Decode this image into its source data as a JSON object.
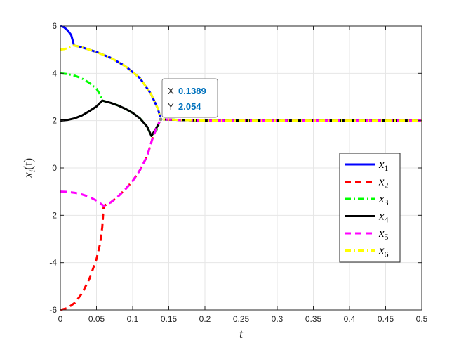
{
  "chart_data": {
    "type": "line",
    "xlabel": "t",
    "ylabel_main": "x",
    "ylabel_sub": "i",
    "ylabel_suffix": "(t)",
    "xlim": [
      0,
      0.5
    ],
    "ylim": [
      -6,
      6
    ],
    "x_ticks": [
      0,
      0.05,
      0.1,
      0.15,
      0.2,
      0.25,
      0.3,
      0.35,
      0.4,
      0.45,
      0.5
    ],
    "x_tick_labels": [
      "0",
      "0.05",
      "0.1",
      "0.15",
      "0.2",
      "0.25",
      "0.3",
      "0.35",
      "0.4",
      "0.45",
      "0.5"
    ],
    "y_ticks": [
      -6,
      -4,
      -2,
      0,
      2,
      4,
      6
    ],
    "y_tick_labels": [
      "-6",
      "-4",
      "-2",
      "0",
      "2",
      "4",
      "6"
    ],
    "grid": true,
    "legend_position": "right",
    "series": [
      {
        "name": "x",
        "sub": "1",
        "color": "#0000ff",
        "dash": "solid",
        "points": [
          [
            0,
            6
          ],
          [
            0.005,
            5.95
          ],
          [
            0.01,
            5.82
          ],
          [
            0.015,
            5.62
          ],
          [
            0.019,
            5.18
          ],
          [
            0.03,
            5.1
          ],
          [
            0.05,
            4.9
          ],
          [
            0.07,
            4.65
          ],
          [
            0.09,
            4.3
          ],
          [
            0.11,
            3.8
          ],
          [
            0.125,
            3.15
          ],
          [
            0.135,
            2.5
          ],
          [
            0.1389,
            2.054
          ],
          [
            0.2,
            2
          ],
          [
            0.3,
            2
          ],
          [
            0.4,
            2
          ],
          [
            0.5,
            2
          ]
        ]
      },
      {
        "name": "x",
        "sub": "2",
        "color": "#ff0000",
        "dash": "dash",
        "points": [
          [
            0,
            -6
          ],
          [
            0.01,
            -5.92
          ],
          [
            0.02,
            -5.7
          ],
          [
            0.03,
            -5.3
          ],
          [
            0.04,
            -4.7
          ],
          [
            0.05,
            -3.85
          ],
          [
            0.055,
            -3.2
          ],
          [
            0.058,
            -2.5
          ],
          [
            0.06,
            -1.6
          ],
          [
            0.07,
            -1.45
          ],
          [
            0.08,
            -1.2
          ],
          [
            0.09,
            -0.9
          ],
          [
            0.1,
            -0.55
          ],
          [
            0.11,
            -0.1
          ],
          [
            0.12,
            0.5
          ],
          [
            0.127,
            1.2
          ],
          [
            0.133,
            1.7
          ],
          [
            0.1389,
            2.054
          ],
          [
            0.2,
            2
          ],
          [
            0.3,
            2
          ],
          [
            0.4,
            2
          ],
          [
            0.5,
            2
          ]
        ]
      },
      {
        "name": "x",
        "sub": "3",
        "color": "#00ff00",
        "dash": "dashdot",
        "points": [
          [
            0,
            4
          ],
          [
            0.01,
            3.97
          ],
          [
            0.02,
            3.9
          ],
          [
            0.03,
            3.78
          ],
          [
            0.04,
            3.6
          ],
          [
            0.05,
            3.35
          ],
          [
            0.056,
            3.05
          ],
          [
            0.058,
            2.85
          ],
          [
            0.07,
            2.75
          ],
          [
            0.08,
            2.64
          ],
          [
            0.09,
            2.5
          ],
          [
            0.1,
            2.33
          ],
          [
            0.11,
            2.1
          ],
          [
            0.12,
            1.75
          ],
          [
            0.126,
            1.35
          ],
          [
            0.133,
            1.6
          ],
          [
            0.1389,
            2.054
          ],
          [
            0.2,
            2
          ],
          [
            0.3,
            2
          ],
          [
            0.4,
            2
          ],
          [
            0.5,
            2
          ]
        ]
      },
      {
        "name": "x",
        "sub": "4",
        "color": "#000000",
        "dash": "solid",
        "points": [
          [
            0,
            2
          ],
          [
            0.01,
            2.03
          ],
          [
            0.02,
            2.1
          ],
          [
            0.03,
            2.22
          ],
          [
            0.04,
            2.4
          ],
          [
            0.05,
            2.6
          ],
          [
            0.058,
            2.85
          ],
          [
            0.07,
            2.75
          ],
          [
            0.08,
            2.64
          ],
          [
            0.09,
            2.5
          ],
          [
            0.1,
            2.33
          ],
          [
            0.11,
            2.1
          ],
          [
            0.12,
            1.75
          ],
          [
            0.126,
            1.35
          ],
          [
            0.133,
            1.7
          ],
          [
            0.1389,
            2.054
          ],
          [
            0.2,
            2
          ],
          [
            0.3,
            2
          ],
          [
            0.4,
            2
          ],
          [
            0.5,
            2
          ]
        ]
      },
      {
        "name": "x",
        "sub": "5",
        "color": "#ff00ff",
        "dash": "dash",
        "points": [
          [
            0,
            -1
          ],
          [
            0.01,
            -1.01
          ],
          [
            0.02,
            -1.05
          ],
          [
            0.03,
            -1.12
          ],
          [
            0.04,
            -1.22
          ],
          [
            0.05,
            -1.38
          ],
          [
            0.06,
            -1.6
          ],
          [
            0.07,
            -1.45
          ],
          [
            0.08,
            -1.2
          ],
          [
            0.09,
            -0.9
          ],
          [
            0.1,
            -0.55
          ],
          [
            0.11,
            -0.1
          ],
          [
            0.12,
            0.5
          ],
          [
            0.127,
            1.2
          ],
          [
            0.133,
            1.7
          ],
          [
            0.1389,
            2.054
          ],
          [
            0.2,
            2
          ],
          [
            0.3,
            2
          ],
          [
            0.4,
            2
          ],
          [
            0.5,
            2
          ]
        ]
      },
      {
        "name": "x",
        "sub": "6",
        "color": "#ffff00",
        "dash": "dashdot",
        "points": [
          [
            0,
            5
          ],
          [
            0.005,
            5.02
          ],
          [
            0.01,
            5.06
          ],
          [
            0.015,
            5.12
          ],
          [
            0.019,
            5.18
          ],
          [
            0.03,
            5.1
          ],
          [
            0.05,
            4.9
          ],
          [
            0.07,
            4.65
          ],
          [
            0.09,
            4.3
          ],
          [
            0.11,
            3.8
          ],
          [
            0.125,
            3.15
          ],
          [
            0.135,
            2.5
          ],
          [
            0.1389,
            2.054
          ],
          [
            0.2,
            2
          ],
          [
            0.3,
            2
          ],
          [
            0.4,
            2
          ],
          [
            0.5,
            2
          ]
        ]
      }
    ],
    "datatip": {
      "x_label": "X",
      "x_value": "0.1389",
      "y_label": "Y",
      "y_value": "2.054",
      "point": [
        0.1389,
        2.054
      ]
    }
  }
}
